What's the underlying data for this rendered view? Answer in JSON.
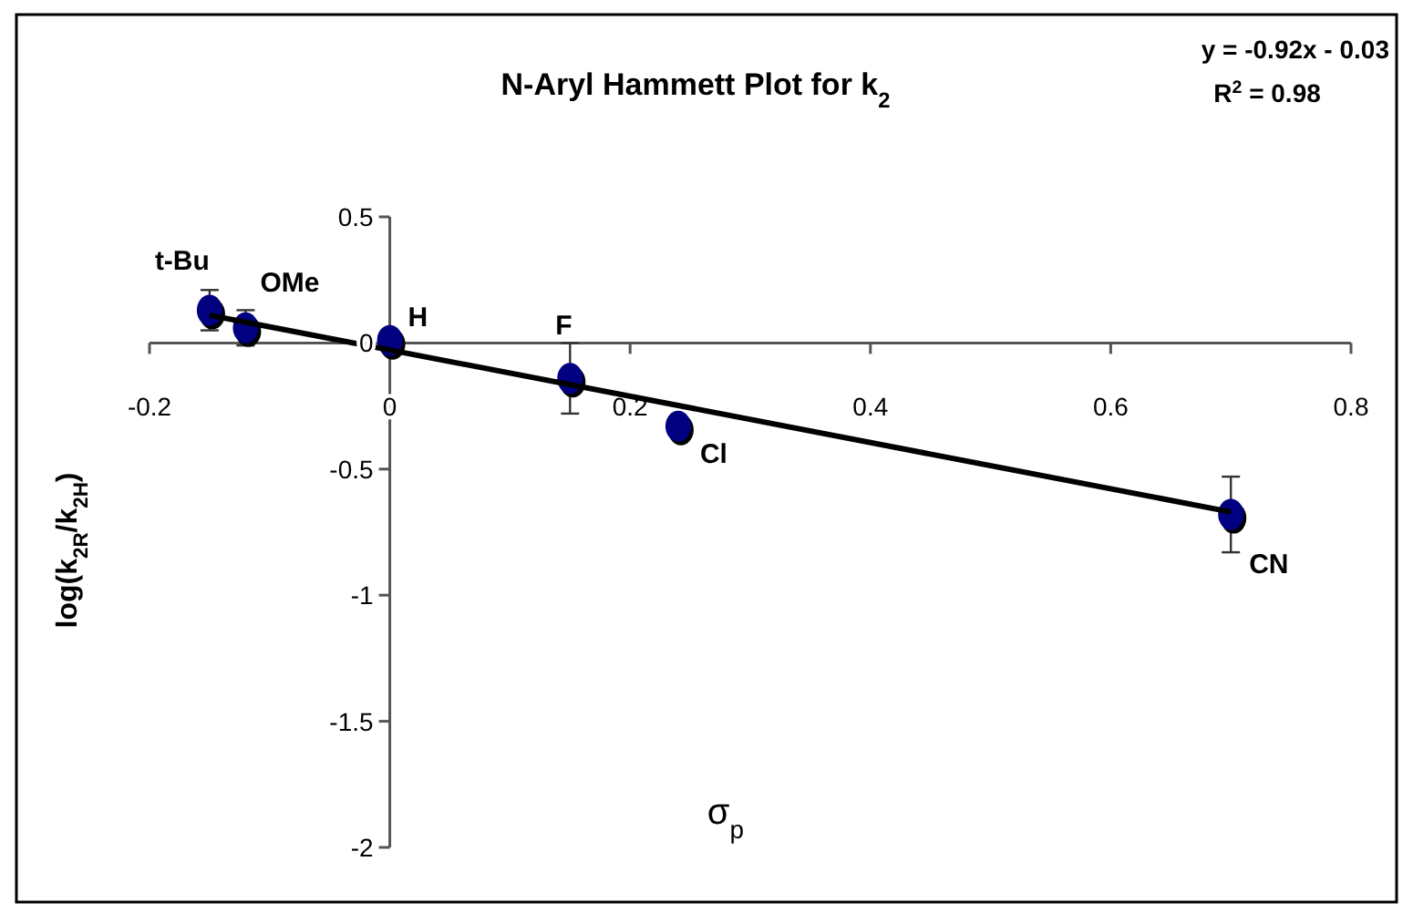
{
  "chart_data": {
    "type": "scatter",
    "title": "N-Aryl Hammett Plot for k$_{2}$",
    "xlabel": "σ$_{p}$",
    "ylabel": "log(k$_{2R}$/k$_{2H}$)",
    "xlim": [
      -0.2,
      0.8
    ],
    "xticks": [
      -0.2,
      0,
      0.2,
      0.4,
      0.6,
      0.8
    ],
    "ylim": [
      -2,
      0.5
    ],
    "yticks": [
      -2,
      -1.5,
      -1,
      -0.5,
      0,
      0.5
    ],
    "grid": false,
    "marker": "circle",
    "series": [
      {
        "color": "#000080",
        "x": [
          -0.15,
          -0.12,
          0,
          0.15,
          0.24,
          0.7
        ],
        "values": [
          0.13,
          0.06,
          0.01,
          -0.14,
          -0.33,
          -0.68
        ],
        "errors": [
          0.08,
          0.07,
          null,
          0.14,
          null,
          0.15
        ]
      },
      {
        "type": "line",
        "color": "#000000",
        "x": [
          -0.15,
          0.7
        ],
        "values": [
          0.11,
          -0.67
        ]
      }
    ],
    "annotations": [
      {
        "text": "t-Bu",
        "x": -0.15,
        "y": 0.13
      },
      {
        "text": "OMe",
        "x": -0.12,
        "y": 0.06
      },
      {
        "text": "H",
        "x": 0,
        "y": 0.01
      },
      {
        "text": "F",
        "x": 0.15,
        "y": -0.14
      },
      {
        "text": "Cl",
        "x": 0.24,
        "y": -0.33
      },
      {
        "text": "CN",
        "x": 0.7,
        "y": -0.68
      },
      "y = -0.92x - 0.03",
      "R$^{2}$ = 0.98"
    ]
  }
}
